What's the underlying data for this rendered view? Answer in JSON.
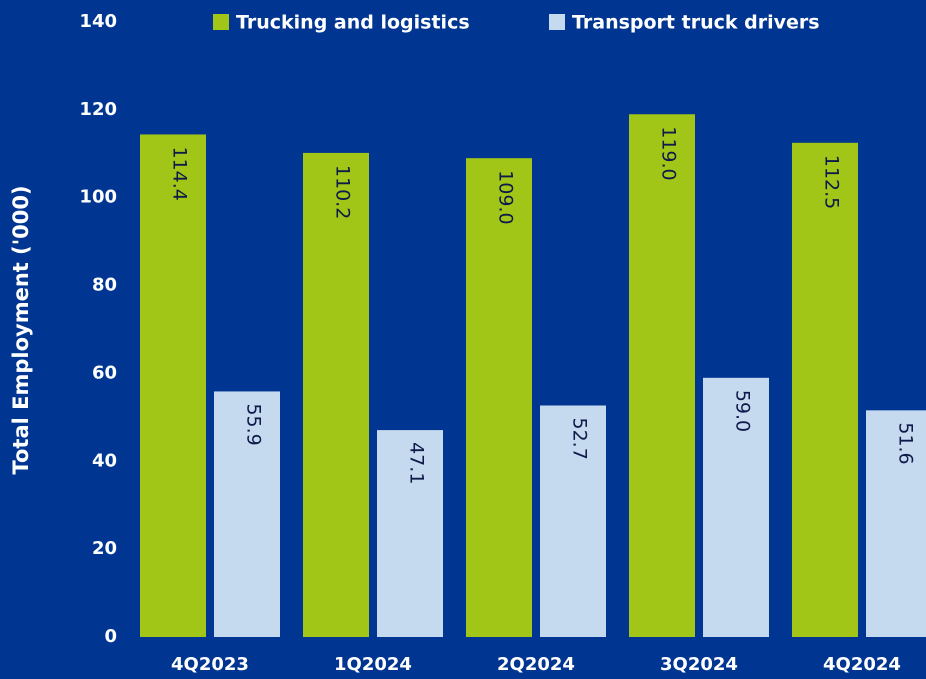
{
  "chart_data": {
    "type": "bar",
    "y_label": "Total Employment ('000)",
    "categories": [
      "4Q2023",
      "1Q2024",
      "2Q2024",
      "3Q2024",
      "4Q2024"
    ],
    "series": [
      {
        "name": "Trucking and logistics",
        "color": "#a2c617",
        "values": [
          114.4,
          110.2,
          109.0,
          119.0,
          112.5
        ],
        "value_labels": [
          "114.4",
          "110.2",
          "109.0",
          "119.0",
          "112.5"
        ]
      },
      {
        "name": "Transport truck drivers",
        "color": "#c5d9ef",
        "values": [
          55.9,
          47.1,
          52.7,
          59.0,
          51.6
        ],
        "value_labels": [
          "55.9",
          "47.1",
          "52.7",
          "59.0",
          "51.6"
        ]
      }
    ],
    "ylim": [
      0,
      140
    ],
    "yticks": [
      0,
      20,
      40,
      60,
      80,
      100,
      120,
      140
    ],
    "legend": "top"
  }
}
